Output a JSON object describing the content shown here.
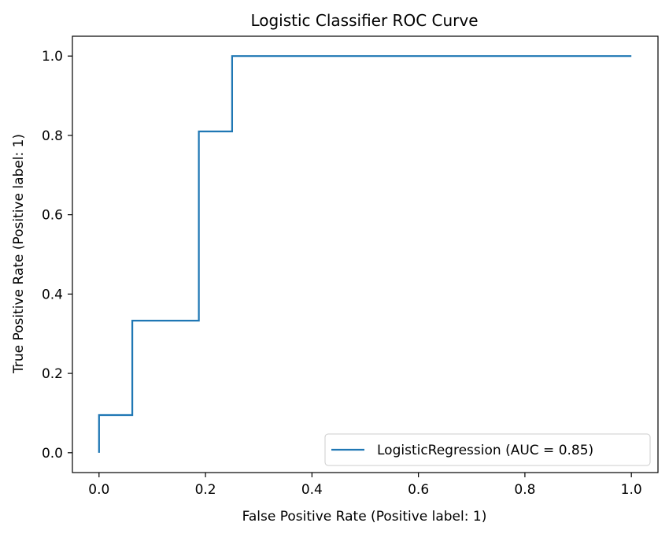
{
  "chart_data": {
    "type": "line",
    "title": "Logistic Classifier ROC Curve",
    "xlabel": "False Positive Rate (Positive label: 1)",
    "ylabel": "True Positive Rate (Positive label: 1)",
    "xlim": [
      -0.05,
      1.05
    ],
    "ylim": [
      -0.05,
      1.05
    ],
    "xticks": [
      0.0,
      0.2,
      0.4,
      0.6,
      0.8,
      1.0
    ],
    "xtick_labels": [
      "0.0",
      "0.2",
      "0.4",
      "0.6",
      "0.8",
      "1.0"
    ],
    "yticks": [
      0.0,
      0.2,
      0.4,
      0.6,
      0.8,
      1.0
    ],
    "ytick_labels": [
      "0.0",
      "0.2",
      "0.4",
      "0.6",
      "0.8",
      "1.0"
    ],
    "grid": false,
    "legend_position": "lower right",
    "series": [
      {
        "name": "LogisticRegression (AUC = 0.85)",
        "color": "#1f77b4",
        "x": [
          0.0,
          0.0,
          0.0625,
          0.0625,
          0.1875,
          0.1875,
          0.25,
          0.25,
          1.0
        ],
        "y": [
          0.0,
          0.095,
          0.095,
          0.333,
          0.333,
          0.81,
          0.81,
          1.0,
          1.0
        ]
      }
    ]
  }
}
